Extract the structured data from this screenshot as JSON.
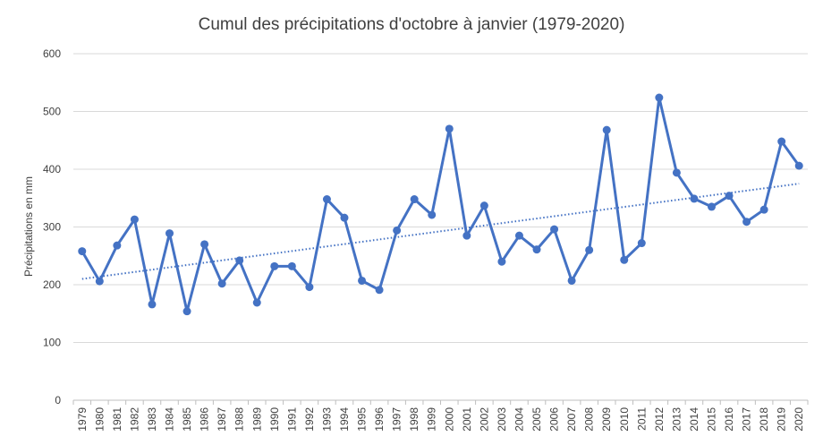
{
  "chart_data": {
    "type": "line",
    "title": "Cumul des précipitations d'octobre à janvier (1979-2020)",
    "xlabel": "",
    "ylabel": "Précipitations en mm",
    "ylim": [
      0,
      600
    ],
    "yticks": [
      0,
      100,
      200,
      300,
      400,
      500,
      600
    ],
    "grid": true,
    "legend": "none",
    "categories": [
      "1979",
      "1980",
      "1981",
      "1982",
      "1983",
      "1984",
      "1985",
      "1986",
      "1987",
      "1988",
      "1989",
      "1990",
      "1991",
      "1992",
      "1993",
      "1994",
      "1995",
      "1996",
      "1997",
      "1998",
      "1999",
      "2000",
      "2001",
      "2002",
      "2003",
      "2004",
      "2005",
      "2006",
      "2007",
      "2008",
      "2009",
      "2010",
      "2011",
      "2012",
      "2013",
      "2014",
      "2015",
      "2016",
      "2017",
      "2018",
      "2019",
      "2020"
    ],
    "series": [
      {
        "values": [
          258,
          206,
          268,
          313,
          166,
          289,
          154,
          270,
          202,
          242,
          169,
          232,
          232,
          196,
          348,
          316,
          207,
          191,
          294,
          348,
          321,
          470,
          285,
          337,
          240,
          285,
          261,
          296,
          207,
          260,
          468,
          243,
          272,
          524,
          394,
          349,
          335,
          354,
          309,
          330,
          448,
          406
        ],
        "color": "#4472c4",
        "marker": "circle"
      }
    ],
    "trendline": {
      "type": "linear",
      "start": 210,
      "end": 375,
      "color": "#4472c4",
      "style": "dotted"
    }
  }
}
